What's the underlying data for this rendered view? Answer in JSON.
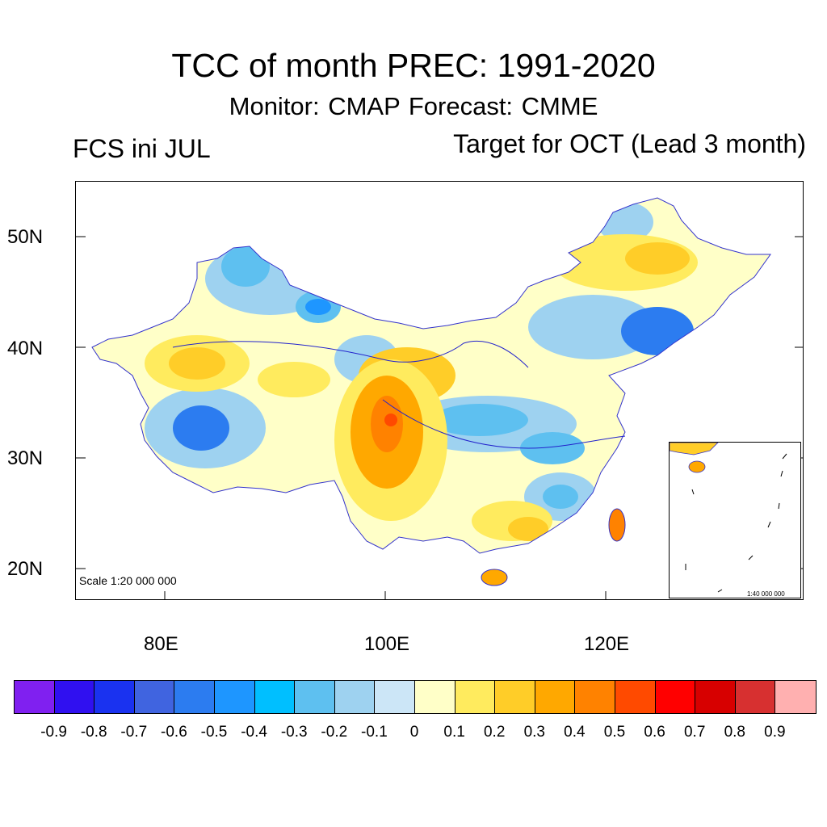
{
  "title": "TCC of month PREC: 1991-2020",
  "subtitle": "Monitor: CMAP   Forecast: CMME",
  "left_label": "FCS ini JUL",
  "right_label": "Target for OCT (Lead 3 month)",
  "axes": {
    "y_ticks": [
      "50N",
      "40N",
      "30N",
      "20N"
    ],
    "x_ticks": [
      "80E",
      "100E",
      "120E"
    ]
  },
  "scale_main": "Scale 1:20 000 000",
  "scale_inset": "1:40 000 000",
  "colorbar": {
    "colors": [
      "#8020f0",
      "#3010f0",
      "#1a32f0",
      "#4064e0",
      "#2c7cf0",
      "#1e96ff",
      "#00bfff",
      "#5ec0f0",
      "#9ed2f0",
      "#cce6f7",
      "#ffffc8",
      "#ffeb5e",
      "#ffcd28",
      "#ffa800",
      "#ff8200",
      "#ff4a00",
      "#ff0000",
      "#d70000",
      "#d73030",
      "#ffb0b0"
    ],
    "labels": [
      "-0.9",
      "-0.8",
      "-0.7",
      "-0.6",
      "-0.5",
      "-0.4",
      "-0.3",
      "-0.2",
      "-0.1",
      "0",
      "0.1",
      "0.2",
      "0.3",
      "0.4",
      "0.5",
      "0.6",
      "0.7",
      "0.8",
      "0.9"
    ]
  }
}
